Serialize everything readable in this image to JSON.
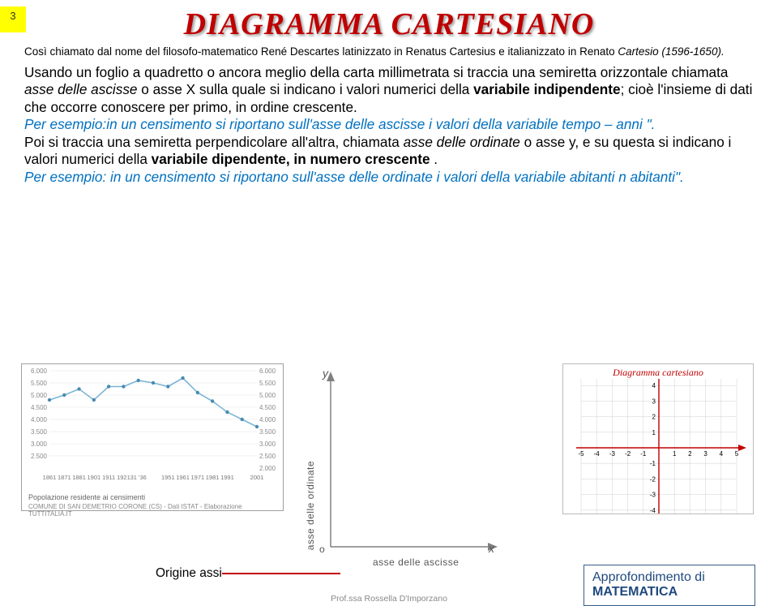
{
  "page_number": "3",
  "title": "DIAGRAMMA CARTESIANO",
  "subtitle_pre": "Così chiamato dal nome del filosofo-matematico René Descartes latinizzato in Renatus Cartesius e italianizzato in Renato ",
  "subtitle_ital": "Cartesio (1596-1650).",
  "para1_a": "Usando un foglio a quadretto o ancora meglio della carta millimetrata si traccia una semiretta orizzontale chiamata ",
  "para1_b": "asse delle ascisse",
  "para1_c": " o asse X sulla quale si indicano i valori numerici della ",
  "para1_d": "variabile indipendente",
  "para1_e": "; cioè l'insieme di dati che occorre conoscere per primo, in ordine crescente.",
  "example1": "Per esempio:in un censimento si riportano sull'asse delle ascisse i valori della variabile tempo – anni \".",
  "para2_a": "Poi si traccia una semiretta perpendicolare all'altra, chiamata ",
  "para2_b": "asse delle ordinate",
  "para2_c": " o asse y, e su questa si indicano i valori numerici della ",
  "para2_d": "variabile dipendente, in numero crescente",
  "para2_e": " .",
  "example2": "Per esempio: in un censimento si riportano sull'asse delle ordinate i valori della variabile abitanti  n  abitanti\".",
  "fig1": {
    "title": "Popolazione residente ai censimenti",
    "sub": "COMUNE DI SAN DEMETRIO CORONE (CS) - Dati ISTAT - Elaborazione TUTTITALIA.IT",
    "y_labels": [
      "6.000",
      "5.500",
      "5.000",
      "4.500",
      "4.000",
      "3.500",
      "3.000",
      "2.500"
    ],
    "y_labels_r": [
      "6.000",
      "5.500",
      "5.000",
      "4.500",
      "4.000",
      "3.500",
      "3.000",
      "2.500",
      "2.000"
    ],
    "x_labels": [
      "1861",
      "1871",
      "1881",
      "1901",
      "1911",
      "1921",
      "31 '36",
      "1951",
      "1961",
      "1971",
      "1981",
      "1991",
      "2001"
    ],
    "values": [
      4800,
      5000,
      5250,
      4800,
      5350,
      5350,
      5600,
      5500,
      5350,
      5700,
      5100,
      4750,
      4300,
      4000,
      3700
    ],
    "line_color": "#7cb5d6",
    "point_color": "#4a8bb0"
  },
  "fig2": {
    "y_label": "asse delle ordinate",
    "x_label": "asse delle ascisse",
    "origin": "o",
    "x_sym": "x",
    "y_sym": "y",
    "axis_color": "#808080"
  },
  "fig3": {
    "title": "Diagramma cartesiano",
    "range": [
      -5,
      5
    ],
    "axis_color": "#c00000",
    "grid_color": "#d0d0d0",
    "tick_color": "#000"
  },
  "origine_label": "Origine assi",
  "approf_1": "Approfondimento di",
  "approf_2": "MATEMATICA",
  "footer": "Prof.ssa Rossella D'Imporzano"
}
